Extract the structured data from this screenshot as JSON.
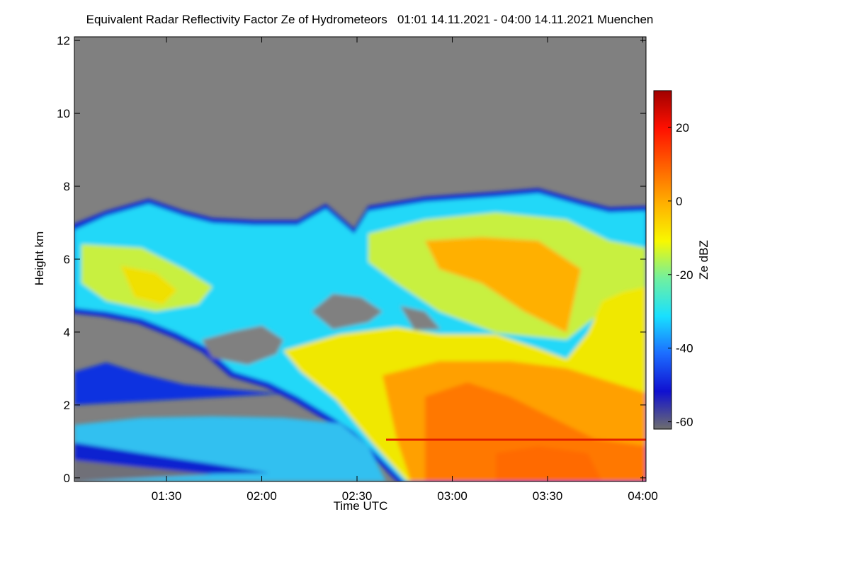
{
  "chart_data": {
    "type": "heatmap",
    "title": "Equivalent Radar Reflectivity Factor Ze of Hydrometeors   01:01 14.11.2021 - 04:00 14.11.2021 Muenchen",
    "x_label": "Time UTC",
    "y_label": "Height km",
    "xlim": [
      61,
      241
    ],
    "xticks": [
      {
        "value": 90,
        "label": "01:30"
      },
      {
        "value": 120,
        "label": "02:00"
      },
      {
        "value": 150,
        "label": "02:30"
      },
      {
        "value": 180,
        "label": "03:00"
      },
      {
        "value": 210,
        "label": "03:30"
      },
      {
        "value": 240,
        "label": "04:00"
      }
    ],
    "ylim": [
      -0.1,
      12.1
    ],
    "yticks": [
      0,
      2,
      4,
      6,
      8,
      10,
      12
    ],
    "background": "#808080",
    "colorbar": {
      "label": "Ze dBZ",
      "lim": [
        -62,
        30
      ],
      "ticks": [
        -60,
        -40,
        -20,
        0,
        20
      ],
      "colors": [
        "#6e6e6e",
        "#1010d0",
        "#1c6cff",
        "#18e0ff",
        "#70f0a0",
        "#f8f800",
        "#ffb000",
        "#ff6000",
        "#ff1000",
        "#a00000"
      ]
    }
  }
}
